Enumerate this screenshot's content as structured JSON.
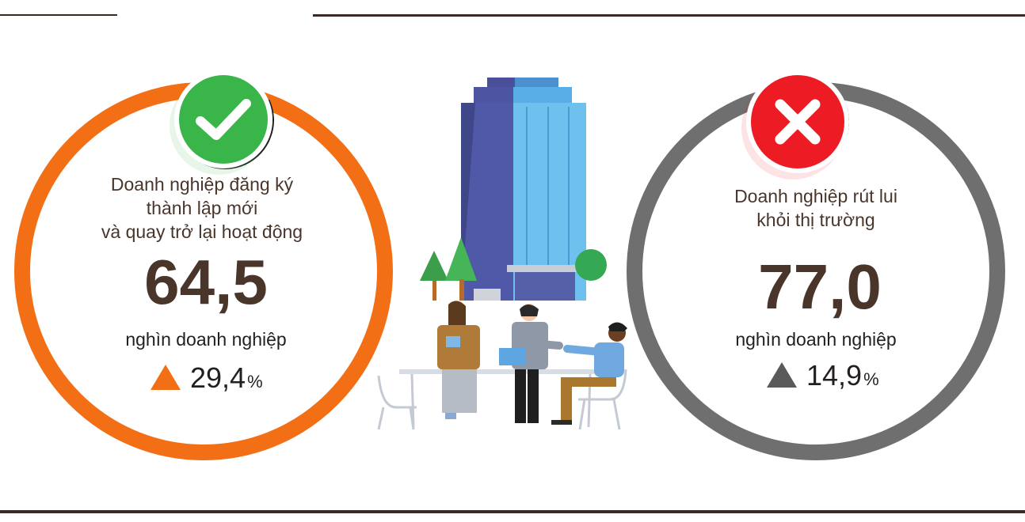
{
  "colors": {
    "accent_orange": "#f36f16",
    "accent_gray": "#6f6f6f",
    "check_green": "#39b54a",
    "cross_red": "#ed1c24",
    "text_brown": "#4a352b"
  },
  "left_panel": {
    "icon": "check-icon",
    "caption_line1": "Doanh nghiệp đăng ký",
    "caption_line2": "thành lập mới",
    "caption_line3": "và quay trở lại hoạt động",
    "value": "64,5",
    "unit": "nghìn doanh nghiệp",
    "change": "29,4",
    "change_unit": "%",
    "change_direction": "up"
  },
  "right_panel": {
    "icon": "cross-icon",
    "caption_line1": "Doanh nghiệp rút lui",
    "caption_line2": "khỏi thị trường",
    "value": "77,0",
    "unit": "nghìn doanh nghiệp",
    "change": "14,9",
    "change_unit": "%",
    "change_direction": "up"
  },
  "illustration": {
    "icon": "office-building-handshake-illustration"
  }
}
